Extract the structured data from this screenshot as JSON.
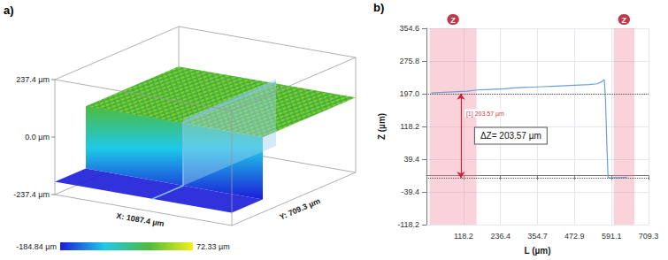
{
  "chart_data": [
    {
      "type": "surface3d",
      "panel": "a)",
      "zlim": [
        -237.4,
        237.4
      ],
      "zticks": [
        {
          "value": 237.4,
          "label": "237.4 µm"
        },
        {
          "value": 0,
          "label": "0.0 µm"
        },
        {
          "value": -237.4,
          "label": "-237.4 µm"
        }
      ],
      "x_label": "X: 1087.4 µm",
      "y_label": "Y: 709.3 µm",
      "colorbar": {
        "range": [
          -184.84,
          72.33
        ],
        "labels": [
          "-184.84 µm",
          "72.33 µm"
        ]
      },
      "colors": [
        "#1c1cd8",
        "#1ec9e8",
        "#4dbb3c",
        "#f2f01a"
      ]
    },
    {
      "type": "line",
      "panel": "b)",
      "x_label": "L (µm)",
      "y_label": "Z (µm)",
      "x": [
        15,
        40,
        70,
        100,
        130,
        160,
        190,
        220,
        250,
        280,
        310,
        340,
        370,
        400,
        430,
        460,
        490,
        520,
        545,
        560,
        568,
        572,
        576,
        580,
        586,
        600,
        620,
        640
      ],
      "values": [
        199,
        200,
        201,
        202,
        203,
        206,
        207,
        208,
        209,
        211,
        212,
        213,
        214,
        215,
        216,
        217,
        218,
        219,
        221,
        226,
        231,
        180,
        80,
        -4,
        -6,
        -5,
        -5,
        -4
      ],
      "color": "#6a9fd4",
      "xlim": [
        0,
        709.3
      ],
      "xticks": [
        118.2,
        236.4,
        354.7,
        472.9,
        591.1,
        709.3
      ],
      "ylim": [
        -118.2,
        354.6
      ],
      "yticks": [
        -118.2,
        -39.4,
        39.4,
        118.2,
        {
          "value": 197,
          "label": "197.0"
        },
        275.8,
        354.6
      ],
      "grid": true,
      "bands": [
        [
          10,
          160
        ],
        [
          598,
          664
        ]
      ],
      "band_label": "Z",
      "levels": [
        197.5,
        -6
      ],
      "annotation": {
        "text": "ΔZ= 203.57 µm",
        "small_text": "[1] 203.57 µm",
        "x": 110,
        "y_range": [
          -6,
          197.5
        ],
        "small_y": 150
      }
    }
  ]
}
